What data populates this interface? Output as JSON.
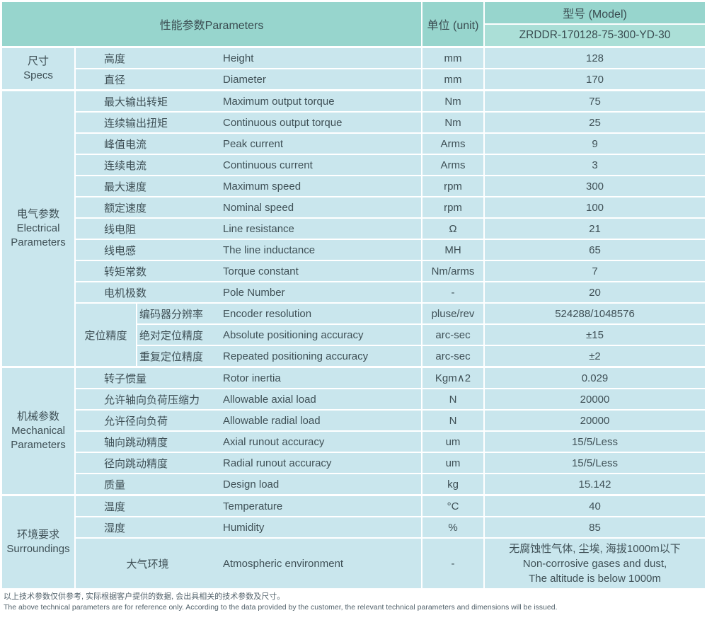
{
  "header": {
    "parameters_label": "性能参数Parameters",
    "unit_label": "单位 (unit)",
    "model_label": "型号 (Model)",
    "model_value": "ZRDDR-170128-75-300-YD-30"
  },
  "colors": {
    "header_bg": "#97d5cd",
    "model_value_bg": "#abdfd7",
    "cell_bg": "#c9e6ed",
    "text": "#3f5056",
    "footer_text": "#51616a"
  },
  "groups": [
    {
      "id": "specs",
      "label_lines": [
        "尺寸",
        "Specs"
      ],
      "rows": [
        {
          "cn": "高度",
          "en": "Height",
          "unit": "mm",
          "value": "128"
        },
        {
          "cn": "直径",
          "en": "Diameter",
          "unit": "mm",
          "value": "170"
        }
      ]
    },
    {
      "id": "electrical",
      "label_lines": [
        "电气参数",
        "Electrical",
        "Parameters"
      ],
      "subgroup": {
        "label": "定位精度",
        "start": 10,
        "count": 3
      },
      "rows": [
        {
          "cn": "最大输出转矩",
          "en": "Maximum output torque",
          "unit": "Nm",
          "value": "75"
        },
        {
          "cn": "连续输出扭矩",
          "en": "Continuous output torque",
          "unit": "Nm",
          "value": "25"
        },
        {
          "cn": "峰值电流",
          "en": "Peak current",
          "unit": "Arms",
          "value": "9"
        },
        {
          "cn": "连续电流",
          "en": "Continuous current",
          "unit": "Arms",
          "value": "3"
        },
        {
          "cn": "最大速度",
          "en": "Maximum speed",
          "unit": "rpm",
          "value": "300"
        },
        {
          "cn": "额定速度",
          "en": "Nominal speed",
          "unit": "rpm",
          "value": "100"
        },
        {
          "cn": "线电阻",
          "en": "Line resistance",
          "unit": "Ω",
          "value": "21"
        },
        {
          "cn": "线电感",
          "en": "The line inductance",
          "unit": "MH",
          "value": "65"
        },
        {
          "cn": "转矩常数",
          "en": "Torque constant",
          "unit": "Nm/arms",
          "value": "7"
        },
        {
          "cn": "电机极数",
          "en": "Pole Number",
          "unit": "-",
          "value": "20"
        },
        {
          "cn": "编码器分辨率",
          "en": "Encoder resolution",
          "unit": "pluse/rev",
          "value": "524288/1048576"
        },
        {
          "cn": "绝对定位精度",
          "en": "Absolute positioning accuracy",
          "unit": "arc-sec",
          "value": "±15"
        },
        {
          "cn": "重复定位精度",
          "en": "Repeated positioning accuracy",
          "unit": "arc-sec",
          "value": "±2"
        }
      ]
    },
    {
      "id": "mechanical",
      "label_lines": [
        "机械参数",
        "Mechanical",
        "Parameters"
      ],
      "rows": [
        {
          "cn": "转子惯量",
          "en": "Rotor inertia",
          "unit": "Kgm∧2",
          "value": "0.029"
        },
        {
          "cn": "允许轴向负荷压缩力",
          "en": "Allowable axial load",
          "unit": "N",
          "value": "20000"
        },
        {
          "cn": "允许径向负荷",
          "en": "Allowable radial load",
          "unit": "N",
          "value": "20000"
        },
        {
          "cn": "轴向跳动精度",
          "en": "Axial runout accuracy",
          "unit": "um",
          "value": "15/5/Less"
        },
        {
          "cn": "径向跳动精度",
          "en": "Radial runout accuracy",
          "unit": "um",
          "value": "15/5/Less"
        },
        {
          "cn": "质量",
          "en": "Design load",
          "unit": "kg",
          "value": "15.142"
        }
      ]
    },
    {
      "id": "surroundings",
      "label_lines": [
        "环境要求",
        "Surroundings"
      ],
      "rows": [
        {
          "cn": "温度",
          "en": "Temperature",
          "unit": "°C",
          "value": "40"
        },
        {
          "cn": "湿度",
          "en": "Humidity",
          "unit": "%",
          "value": "85"
        },
        {
          "cn": "大气环境",
          "en": "Atmospheric environment",
          "unit": "-",
          "tall": true,
          "centered_cn": true,
          "value_lines": [
            "无腐蚀性气体, 尘埃, 海拔1000m以下",
            "Non-corrosive gases and dust,",
            "The altitude is below 1000m"
          ]
        }
      ]
    }
  ],
  "footer": {
    "line_cn": "以上技术参数仅供参考, 实际根据客户提供的数据, 会出具相关的技术参数及尺寸。",
    "line_en": "The above technical parameters are for reference only. According to the data provided by the customer, the relevant technical parameters and dimensions will be issued."
  }
}
